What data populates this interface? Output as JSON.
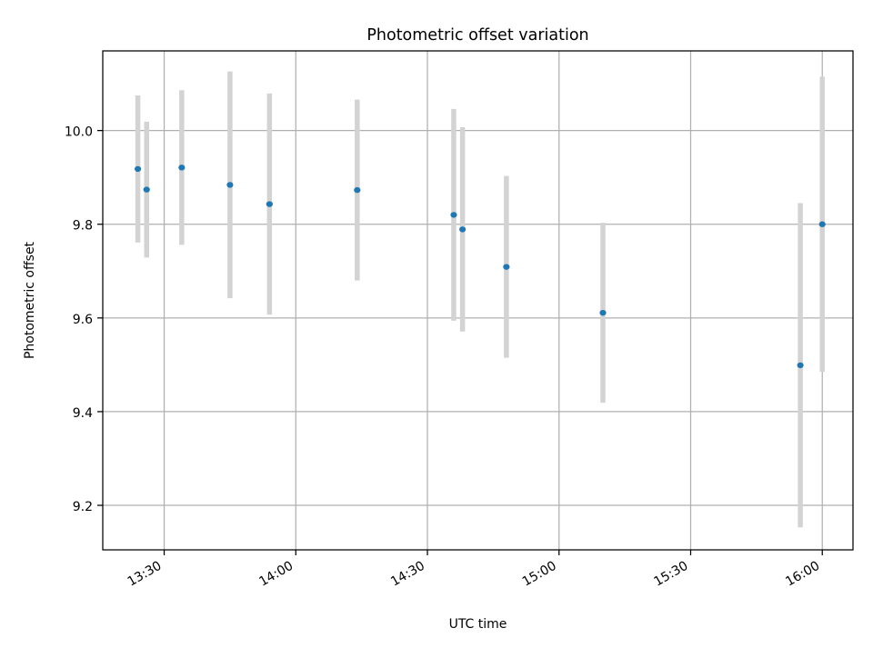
{
  "chart_data": {
    "type": "scatter",
    "title": "Photometric offset variation",
    "xlabel": "UTC time",
    "ylabel": "Photometric offset",
    "x_axis_type": "time",
    "xlim": [
      "13:16",
      "16:07"
    ],
    "ylim": [
      9.105,
      10.17
    ],
    "xticks": [
      {
        "value": "13:30",
        "label": "13:30"
      },
      {
        "value": "14:00",
        "label": "14:00"
      },
      {
        "value": "14:30",
        "label": "14:30"
      },
      {
        "value": "15:00",
        "label": "15:00"
      },
      {
        "value": "15:30",
        "label": "15:30"
      },
      {
        "value": "16:00",
        "label": "16:00"
      }
    ],
    "yticks": [
      9.2,
      9.4,
      9.6,
      9.8,
      10.0
    ],
    "ytick_labels": [
      "9.2",
      "9.4",
      "9.6",
      "9.8",
      "10.0"
    ],
    "grid": true,
    "legend": null,
    "colors": {
      "marker": "#1f77b4",
      "errorbar": "#d3d3d3",
      "grid": "#b0b0b0"
    },
    "series": [
      {
        "points": [
          {
            "x": "13:24",
            "y": 9.918,
            "yerr": 0.157
          },
          {
            "x": "13:26",
            "y": 9.874,
            "yerr": 0.145
          },
          {
            "x": "13:34",
            "y": 9.921,
            "yerr": 0.165
          },
          {
            "x": "13:45",
            "y": 9.884,
            "yerr": 0.242
          },
          {
            "x": "13:54",
            "y": 9.843,
            "yerr": 0.236
          },
          {
            "x": "14:14",
            "y": 9.873,
            "yerr": 0.193
          },
          {
            "x": "14:36",
            "y": 9.82,
            "yerr": 0.226
          },
          {
            "x": "14:38",
            "y": 9.789,
            "yerr": 0.218
          },
          {
            "x": "14:48",
            "y": 9.709,
            "yerr": 0.194
          },
          {
            "x": "15:10",
            "y": 9.611,
            "yerr": 0.192
          },
          {
            "x": "15:55",
            "y": 9.499,
            "yerr": 0.346
          },
          {
            "x": "16:00",
            "y": 9.8,
            "yerr": 0.315
          }
        ]
      }
    ]
  }
}
